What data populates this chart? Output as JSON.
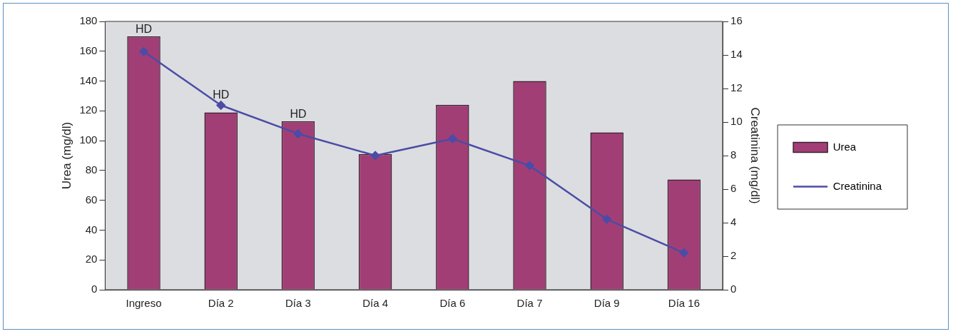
{
  "chart_data": {
    "type": "bar",
    "categories": [
      "Ingreso",
      "Día 2",
      "Día 3",
      "Día 4",
      "Día 6",
      "Día 7",
      "Día 9",
      "Día 16"
    ],
    "series": [
      {
        "name": "Urea",
        "color": "#a23e76",
        "values": [
          170,
          119,
          113,
          91,
          124,
          140,
          105.5,
          74
        ]
      },
      {
        "name": "Creatinina",
        "type": "line",
        "axis": "y2",
        "color": "#4b4ca6",
        "marker": "diamond",
        "values": [
          14.2,
          11,
          9.3,
          8,
          9,
          7.4,
          4.2,
          2.2
        ]
      }
    ],
    "ylabel": "Urea (mg/dl)",
    "y2label": "Creatinina (mg/dl)",
    "ylim": [
      0,
      180
    ],
    "yticks": [
      0,
      20,
      40,
      60,
      80,
      100,
      120,
      140,
      160,
      180
    ],
    "y2lim": [
      0,
      16
    ],
    "y2ticks": [
      0,
      2,
      4,
      6,
      8,
      10,
      12,
      14,
      16
    ],
    "annotations": [
      {
        "text": "HD",
        "x": "Ingreso",
        "y": 170
      },
      {
        "text": "HD",
        "x": "Día 2",
        "y": 126
      },
      {
        "text": "HD",
        "x": "Día 3",
        "y": 113
      }
    ],
    "legend": "right",
    "grid": false
  }
}
